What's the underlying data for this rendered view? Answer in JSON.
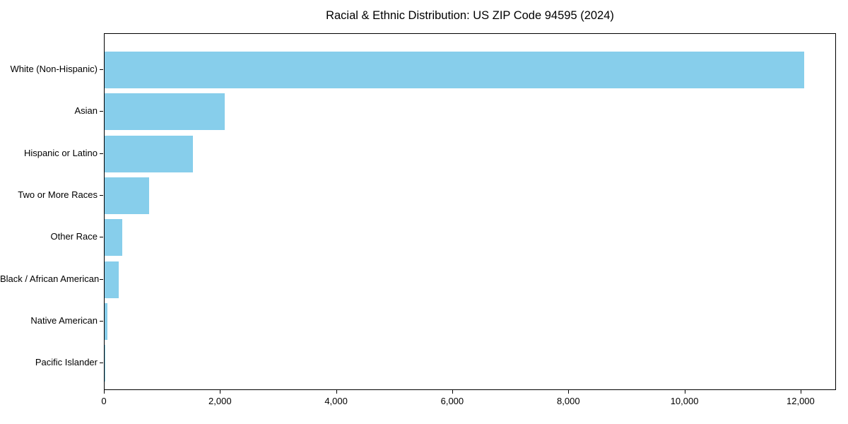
{
  "chart_data": {
    "type": "bar",
    "orientation": "horizontal",
    "title": "Racial & Ethnic Distribution: US ZIP Code 94595 (2024)",
    "categories": [
      "White (Non-Hispanic)",
      "Asian",
      "Hispanic or Latino",
      "Two or More Races",
      "Other Race",
      "Black / African American",
      "Native American",
      "Pacific Islander"
    ],
    "values": [
      12050,
      2070,
      1525,
      770,
      305,
      245,
      45,
      5
    ],
    "x_ticks": [
      {
        "value": 0,
        "label": "0"
      },
      {
        "value": 2000,
        "label": "2,000"
      },
      {
        "value": 4000,
        "label": "4,000"
      },
      {
        "value": 6000,
        "label": "6,000"
      },
      {
        "value": 8000,
        "label": "8,000"
      },
      {
        "value": 10000,
        "label": "10,000"
      },
      {
        "value": 12000,
        "label": "12,000"
      }
    ],
    "xlim": [
      0,
      12610
    ],
    "xlabel": "",
    "ylabel": "",
    "grid": false,
    "legend": false,
    "bar_color": "#87CEEB",
    "axis_color": "#000000",
    "background_color": "#FFFFFF"
  }
}
